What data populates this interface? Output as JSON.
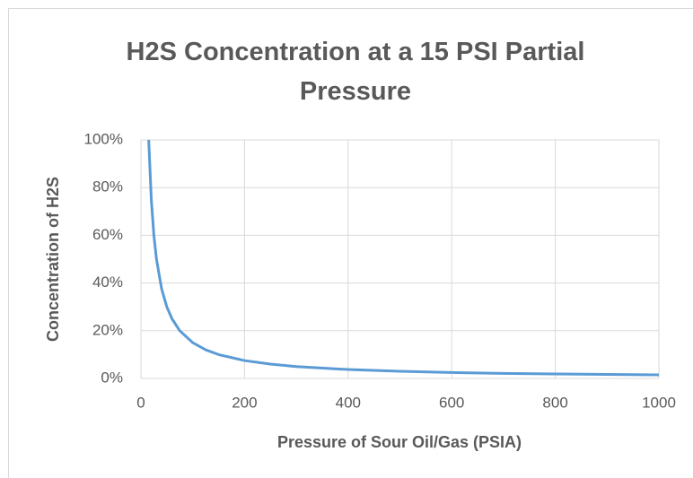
{
  "chart_data": {
    "type": "line",
    "title": "H2S Concentration at a 15 PSI Partial Pressure",
    "xlabel": "Pressure of Sour Oil/Gas (PSIA)",
    "ylabel": "Concentration of H2S",
    "x": [
      15,
      20,
      25,
      30,
      40,
      50,
      60,
      75,
      100,
      125,
      150,
      200,
      250,
      300,
      400,
      500,
      600,
      700,
      800,
      900,
      1000
    ],
    "series": [
      {
        "name": "Concentration of H2S",
        "color": "#5b9bd5",
        "values": [
          100,
          75,
          60,
          50,
          37.5,
          30,
          25,
          20,
          15,
          12,
          10,
          7.5,
          6,
          5,
          3.75,
          3,
          2.5,
          2.1,
          1.9,
          1.7,
          1.5
        ]
      }
    ],
    "xlim": [
      0,
      1000
    ],
    "xticks": [
      0,
      200,
      400,
      600,
      800,
      1000
    ],
    "ylim": [
      0,
      100
    ],
    "yticks": [
      {
        "value": 0,
        "label": "0%"
      },
      {
        "value": 20,
        "label": "20%"
      },
      {
        "value": 40,
        "label": "40%"
      },
      {
        "value": 60,
        "label": "60%"
      },
      {
        "value": 80,
        "label": "80%"
      },
      {
        "value": 100,
        "label": "100%"
      }
    ],
    "grid": true
  }
}
